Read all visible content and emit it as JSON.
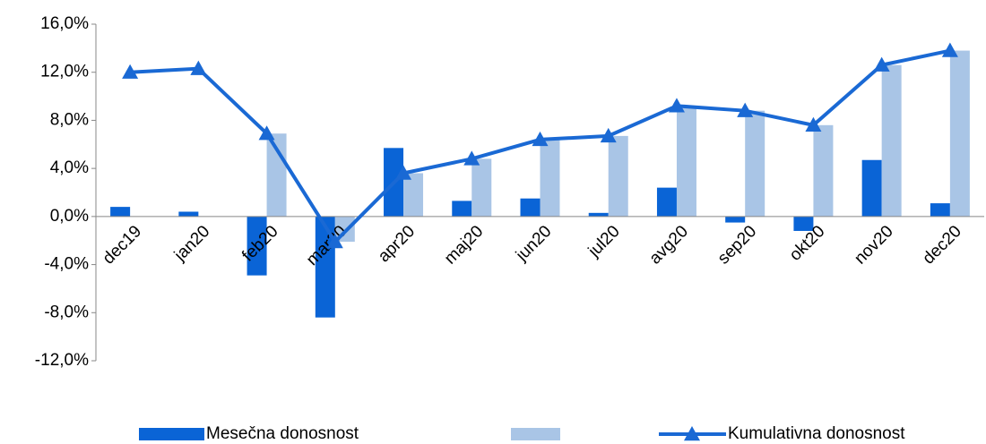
{
  "chart_data": {
    "type": "bar-line",
    "categories": [
      "dec19",
      "jan20",
      "feb20",
      "mar20",
      "apr20",
      "maj20",
      "jun20",
      "jul20",
      "avg20",
      "sep20",
      "okt20",
      "nov20",
      "dec20"
    ],
    "series": [
      {
        "name": "Mesečna donosnost",
        "type": "bar",
        "color": "#0a64d6",
        "values": [
          0.8,
          0.4,
          -4.9,
          -8.4,
          5.7,
          1.3,
          1.5,
          0.3,
          2.4,
          -0.5,
          -1.2,
          4.7,
          1.1
        ]
      },
      {
        "type": "bar",
        "color": "#a9c5e6",
        "values": [
          null,
          null,
          6.9,
          -2.1,
          3.6,
          4.8,
          6.4,
          6.7,
          9.2,
          8.8,
          7.6,
          12.6,
          13.8
        ]
      },
      {
        "name": "Kumulativna donosnost",
        "type": "line",
        "color": "#1a69d4",
        "values": [
          12.0,
          12.3,
          6.9,
          -2.1,
          3.6,
          4.8,
          6.4,
          6.7,
          9.2,
          8.8,
          7.6,
          12.6,
          13.8
        ]
      }
    ],
    "ylim": [
      -12,
      16
    ],
    "yticks": [
      {
        "value": -12,
        "label": "-12,0%"
      },
      {
        "value": -8,
        "label": "-8,0%"
      },
      {
        "value": -4,
        "label": "-4,0%"
      },
      {
        "value": 0,
        "label": "0,0%"
      },
      {
        "value": 4,
        "label": "4,0%"
      },
      {
        "value": 8,
        "label": "8,0%"
      },
      {
        "value": 12,
        "label": "12,0%"
      },
      {
        "value": 16,
        "label": "16,0%"
      }
    ],
    "grid": false,
    "legend": "bottom"
  }
}
